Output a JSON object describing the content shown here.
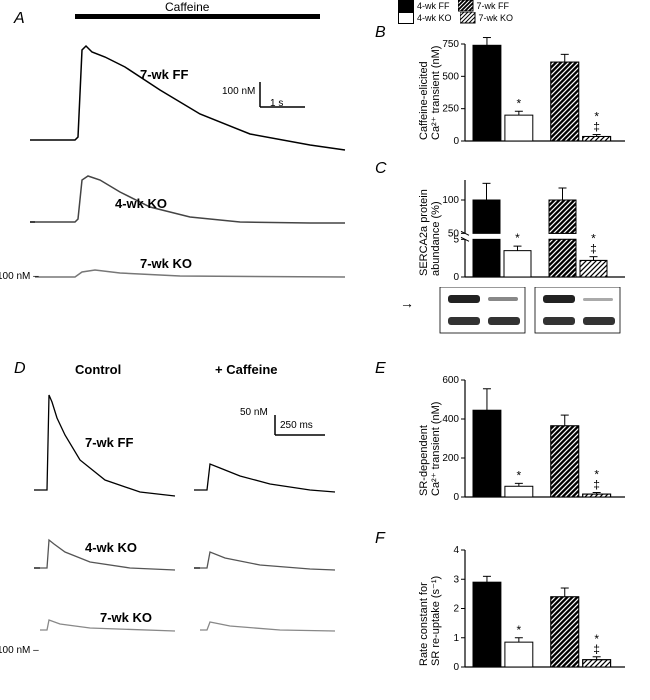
{
  "legend": {
    "items": [
      {
        "label": "4-wk FF",
        "fill": "#000000",
        "hatch": false
      },
      {
        "label": "4-wk KO",
        "fill": "#ffffff",
        "hatch": false
      },
      {
        "label": "7-wk FF",
        "fill": "#000000",
        "hatch": true
      },
      {
        "label": "7-wk KO",
        "fill": "#ffffff",
        "hatch": true
      }
    ]
  },
  "panelA": {
    "label": "A",
    "caffeine_bar_label": "Caffeine",
    "traces": {
      "ff7": {
        "label": "7-wk FF",
        "color": "#000000"
      },
      "ko4": {
        "label": "4-wk KO",
        "color": "#555555"
      },
      "ko7": {
        "label": "7-wk KO",
        "color": "#888888"
      }
    },
    "scale": {
      "y_label": "100 nM",
      "x_label": "1 s"
    },
    "baseline_label": "100 nM"
  },
  "panelB": {
    "label": "B",
    "ylabel": "Caffeine-elicited\nCa²⁺ transient (nM)",
    "type": "bar",
    "ylim": [
      0,
      750
    ],
    "yticks": [
      0,
      250,
      500,
      750
    ],
    "bars": [
      {
        "group": "4-wk FF",
        "value": 740,
        "err": 60,
        "fill": "#000000",
        "hatch": false,
        "marks": []
      },
      {
        "group": "4-wk KO",
        "value": 200,
        "err": 30,
        "fill": "#ffffff",
        "hatch": false,
        "marks": [
          "*"
        ]
      },
      {
        "group": "7-wk FF",
        "value": 610,
        "err": 60,
        "fill": "#000000",
        "hatch": true,
        "marks": []
      },
      {
        "group": "7-wk KO",
        "value": 35,
        "err": 15,
        "fill": "#ffffff",
        "hatch": true,
        "marks": [
          "‡",
          "*"
        ]
      }
    ]
  },
  "panelC": {
    "label": "C",
    "ylabel": "SERCA2a protein\nabundance (%)",
    "type": "bar-broken",
    "ylim_upper": [
      50,
      100
    ],
    "ylim_lower": [
      0,
      5
    ],
    "yticks_upper": [
      50,
      100
    ],
    "yticks_lower": [
      0,
      5
    ],
    "bars": [
      {
        "group": "4-wk FF",
        "value": 100,
        "err": 25,
        "fill": "#000000",
        "hatch": false,
        "marks": []
      },
      {
        "group": "4-wk KO",
        "value": 3.5,
        "err": 0.6,
        "fill": "#ffffff",
        "hatch": false,
        "marks": [
          "*"
        ]
      },
      {
        "group": "7-wk FF",
        "value": 100,
        "err": 18,
        "fill": "#000000",
        "hatch": true,
        "marks": []
      },
      {
        "group": "7-wk KO",
        "value": 2.2,
        "err": 0.5,
        "fill": "#ffffff",
        "hatch": true,
        "marks": [
          "‡",
          "*"
        ]
      }
    ],
    "blot": {
      "arrow": "→",
      "lanes": 4
    }
  },
  "panelD": {
    "label": "D",
    "col_labels": {
      "control": "Control",
      "caffeine": "+ Caffeine"
    },
    "traces": {
      "ff7": {
        "label": "7-wk FF",
        "color": "#000000"
      },
      "ko4": {
        "label": "4-wk KO",
        "color": "#666666"
      },
      "ko7": {
        "label": "7-wk KO",
        "color": "#999999"
      }
    },
    "scale": {
      "y_label": "50 nM",
      "x_label": "250 ms"
    },
    "baseline_label": "100 nM"
  },
  "panelE": {
    "label": "E",
    "ylabel": "SR-dependent\nCa²⁺ transient (nM)",
    "type": "bar",
    "ylim": [
      0,
      600
    ],
    "yticks": [
      0,
      200,
      400,
      600
    ],
    "bars": [
      {
        "group": "4-wk FF",
        "value": 445,
        "err": 110,
        "fill": "#000000",
        "hatch": false,
        "marks": []
      },
      {
        "group": "4-wk KO",
        "value": 55,
        "err": 15,
        "fill": "#ffffff",
        "hatch": false,
        "marks": [
          "*"
        ]
      },
      {
        "group": "7-wk FF",
        "value": 365,
        "err": 55,
        "fill": "#000000",
        "hatch": true,
        "marks": []
      },
      {
        "group": "7-wk KO",
        "value": 15,
        "err": 8,
        "fill": "#ffffff",
        "hatch": true,
        "marks": [
          "‡",
          "*"
        ]
      }
    ]
  },
  "panelF": {
    "label": "F",
    "ylabel": "Rate constant for\nSR re-uptake (s⁻¹)",
    "type": "bar",
    "ylim": [
      0,
      4
    ],
    "yticks": [
      0,
      1,
      2,
      3,
      4
    ],
    "bars": [
      {
        "group": "4-wk FF",
        "value": 2.9,
        "err": 0.2,
        "fill": "#000000",
        "hatch": false,
        "marks": []
      },
      {
        "group": "4-wk KO",
        "value": 0.85,
        "err": 0.15,
        "fill": "#ffffff",
        "hatch": false,
        "marks": [
          "*"
        ]
      },
      {
        "group": "7-wk FF",
        "value": 2.4,
        "err": 0.3,
        "fill": "#000000",
        "hatch": true,
        "marks": []
      },
      {
        "group": "7-wk KO",
        "value": 0.25,
        "err": 0.1,
        "fill": "#ffffff",
        "hatch": true,
        "marks": [
          "‡",
          "*"
        ]
      }
    ]
  },
  "colors": {
    "axis": "#000000",
    "bg": "#ffffff",
    "trace_dark": "#000000",
    "trace_mid": "#555555",
    "trace_light": "#888888"
  }
}
